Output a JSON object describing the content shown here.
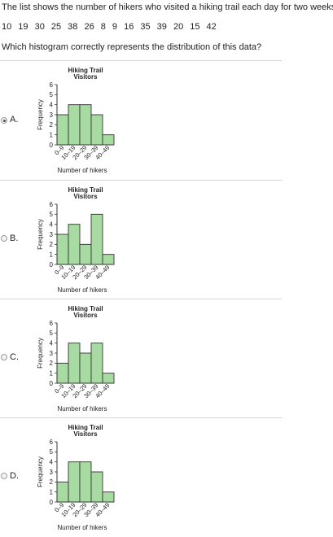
{
  "prompt": "The list shows the number of hikers who visited a hiking trail each day for two weeks.",
  "data_list": "10 19 30 25 38 26 8 9 16 35 39 20 15 42",
  "question": "Which histogram correctly represents the distribution of this data?",
  "colors": {
    "bar_fill": "#a8dba2",
    "bar_stroke": "#333333",
    "divider": "#d6d6d6"
  },
  "options": [
    {
      "letter": "A.",
      "selected": true
    },
    {
      "letter": "B.",
      "selected": false
    },
    {
      "letter": "C.",
      "selected": false
    },
    {
      "letter": "D.",
      "selected": false
    }
  ],
  "chart_data": [
    {
      "type": "bar",
      "title": "Hiking Trail Visitors",
      "title_lines": [
        "Hiking Trail",
        "Visitors"
      ],
      "xlabel": "Number of hikers",
      "ylabel": "Frequency",
      "categories": [
        "0–9",
        "10–19",
        "20–29",
        "30–39",
        "40–49"
      ],
      "values": [
        3,
        4,
        4,
        3,
        1
      ],
      "ylim": [
        0,
        6
      ],
      "yticks": [
        "0",
        "1",
        "2",
        "3",
        "4",
        "5",
        "6"
      ]
    },
    {
      "type": "bar",
      "title": "Hiking Trail Visitors",
      "title_lines": [
        "Hiking Trail",
        "Visitors"
      ],
      "xlabel": "Number of hikers",
      "ylabel": "Frequency",
      "categories": [
        "0–9",
        "10–19",
        "20–29",
        "30–39",
        "40–49"
      ],
      "values": [
        3,
        4,
        2,
        5,
        1
      ],
      "ylim": [
        0,
        6
      ],
      "yticks": [
        "0",
        "1",
        "2",
        "3",
        "4",
        "5",
        "6"
      ]
    },
    {
      "type": "bar",
      "title": "Hiking Trail Visitors",
      "title_lines": [
        "Hiking Trail",
        "Visitors"
      ],
      "xlabel": "Number of hikers",
      "ylabel": "Frequency",
      "categories": [
        "0–9",
        "10–19",
        "20–29",
        "30–39",
        "40–49"
      ],
      "values": [
        2,
        4,
        3,
        4,
        1
      ],
      "ylim": [
        0,
        6
      ],
      "yticks": [
        "0",
        "1",
        "2",
        "3",
        "4",
        "5",
        "6"
      ]
    },
    {
      "type": "bar",
      "title": "Hiking Trail Visitors",
      "title_lines": [
        "Hiking Trail",
        "Visitors"
      ],
      "xlabel": "Number of hikers",
      "ylabel": "Frequency",
      "categories": [
        "0–9",
        "10–19",
        "20–29",
        "30–39",
        "40–49"
      ],
      "values": [
        2,
        4,
        4,
        3,
        1
      ],
      "ylim": [
        0,
        6
      ],
      "yticks": [
        "0",
        "1",
        "2",
        "3",
        "4",
        "5",
        "6"
      ]
    }
  ]
}
